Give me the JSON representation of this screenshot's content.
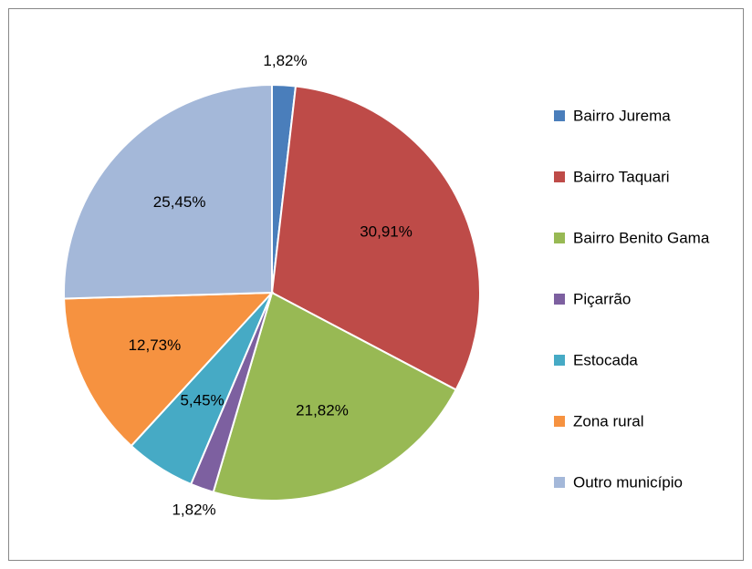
{
  "chart_data": {
    "type": "pie",
    "categories": [
      "Bairro Jurema",
      "Bairro Taquari",
      "Bairro Benito Gama",
      "Piçarrão",
      "Estocada",
      "Zona rural",
      "Outro município"
    ],
    "values": [
      1.82,
      30.91,
      21.82,
      1.82,
      5.45,
      12.73,
      25.45
    ],
    "value_labels": [
      "1,82%",
      "30,91%",
      "21,82%",
      "1,82%",
      "5,45%",
      "12,73%",
      "25,45%"
    ],
    "colors": [
      "#4a7ebb",
      "#be4b48",
      "#98b954",
      "#7d60a0",
      "#46aac5",
      "#f69240",
      "#a4b8d9"
    ],
    "legend": "right"
  }
}
